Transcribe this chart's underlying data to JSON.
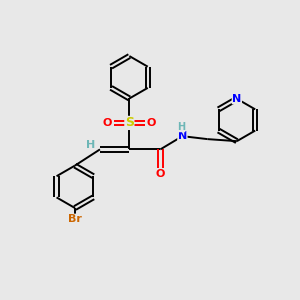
{
  "background_color": "#e8e8e8",
  "atom_colors": {
    "C": "#000000",
    "H": "#6db6b6",
    "N": "#0000ff",
    "O": "#ff0000",
    "S": "#cccc00",
    "Br": "#cc6600"
  },
  "bond_color": "#000000",
  "lw": 1.4,
  "ring_r": 0.72
}
